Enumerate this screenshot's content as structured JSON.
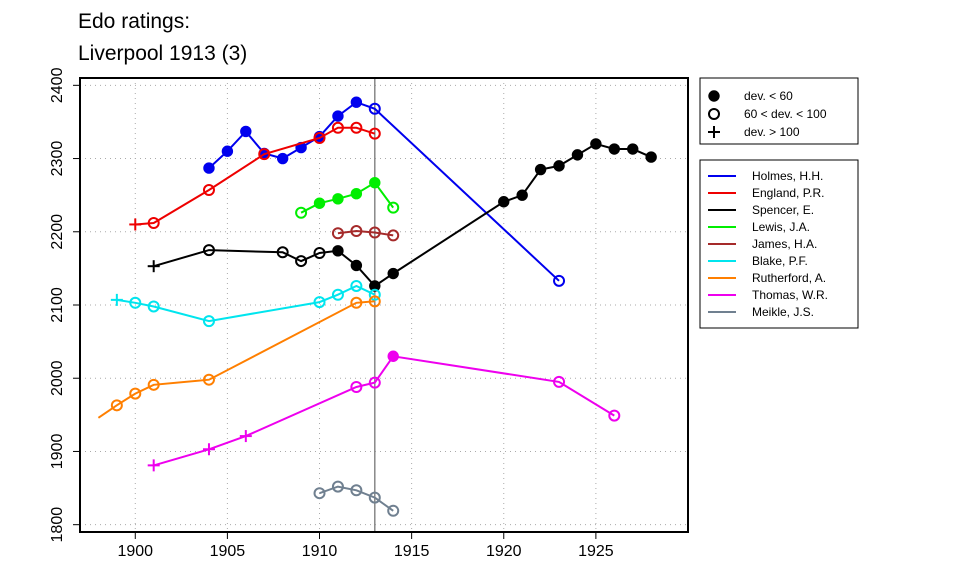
{
  "chart_data": {
    "type": "line",
    "title_lines": [
      "Edo ratings:",
      "Liverpool 1913 (3)"
    ],
    "xlim": [
      1897,
      1930
    ],
    "ylim": [
      1790,
      2410
    ],
    "x_ticks": [
      1900,
      1905,
      1910,
      1915,
      1920,
      1925
    ],
    "y_ticks": [
      1800,
      1900,
      2000,
      2100,
      2200,
      2300,
      2400
    ],
    "grid": true,
    "reference_line_x": 1913,
    "marker_legend": [
      {
        "marker": "dot",
        "label": "dev. < 60"
      },
      {
        "marker": "circle",
        "label": "60 < dev. < 100"
      },
      {
        "marker": "plus",
        "label": "dev. > 100"
      }
    ],
    "series": [
      {
        "name": "Holmes, H.H.",
        "color": "#0000ee",
        "points": [
          {
            "x": 1904,
            "y": 2287,
            "m": "dot"
          },
          {
            "x": 1905,
            "y": 2310,
            "m": "dot"
          },
          {
            "x": 1906,
            "y": 2337,
            "m": "dot"
          },
          {
            "x": 1907,
            "y": 2307,
            "m": "dot"
          },
          {
            "x": 1908,
            "y": 2300,
            "m": "dot"
          },
          {
            "x": 1909,
            "y": 2315,
            "m": "dot"
          },
          {
            "x": 1910,
            "y": 2330,
            "m": "dot"
          },
          {
            "x": 1911,
            "y": 2358,
            "m": "dot"
          },
          {
            "x": 1912,
            "y": 2377,
            "m": "dot"
          },
          {
            "x": 1913,
            "y": 2368,
            "m": "circle"
          },
          {
            "x": 1923,
            "y": 2133,
            "m": "circle"
          }
        ]
      },
      {
        "name": "England, P.R.",
        "color": "#ee0000",
        "points": [
          {
            "x": 1900,
            "y": 2210,
            "m": "plus"
          },
          {
            "x": 1901,
            "y": 2212,
            "m": "circle"
          },
          {
            "x": 1904,
            "y": 2257,
            "m": "circle"
          },
          {
            "x": 1907,
            "y": 2306,
            "m": "circle"
          },
          {
            "x": 1910,
            "y": 2328,
            "m": "circle"
          },
          {
            "x": 1911,
            "y": 2342,
            "m": "circle"
          },
          {
            "x": 1912,
            "y": 2342,
            "m": "circle"
          },
          {
            "x": 1913,
            "y": 2334,
            "m": "circle"
          }
        ]
      },
      {
        "name": "Spencer, E.",
        "color": "#000000",
        "points": [
          {
            "x": 1901,
            "y": 2153,
            "m": "plus"
          },
          {
            "x": 1904,
            "y": 2175,
            "m": "circle"
          },
          {
            "x": 1908,
            "y": 2172,
            "m": "circle"
          },
          {
            "x": 1909,
            "y": 2160,
            "m": "circle"
          },
          {
            "x": 1910,
            "y": 2171,
            "m": "circle"
          },
          {
            "x": 1911,
            "y": 2174,
            "m": "dot"
          },
          {
            "x": 1912,
            "y": 2154,
            "m": "dot"
          },
          {
            "x": 1913,
            "y": 2126,
            "m": "dot"
          },
          {
            "x": 1914,
            "y": 2143,
            "m": "dot"
          },
          {
            "x": 1920,
            "y": 2241,
            "m": "dot"
          },
          {
            "x": 1921,
            "y": 2250,
            "m": "dot"
          },
          {
            "x": 1922,
            "y": 2285,
            "m": "dot"
          },
          {
            "x": 1923,
            "y": 2290,
            "m": "dot"
          },
          {
            "x": 1924,
            "y": 2305,
            "m": "dot"
          },
          {
            "x": 1925,
            "y": 2320,
            "m": "dot"
          },
          {
            "x": 1926,
            "y": 2313,
            "m": "dot"
          },
          {
            "x": 1927,
            "y": 2313,
            "m": "dot"
          },
          {
            "x": 1928,
            "y": 2302,
            "m": "dot"
          }
        ]
      },
      {
        "name": "Lewis, J.A.",
        "color": "#00ee00",
        "points": [
          {
            "x": 1909,
            "y": 2226,
            "m": "circle"
          },
          {
            "x": 1910,
            "y": 2239,
            "m": "dot"
          },
          {
            "x": 1911,
            "y": 2245,
            "m": "dot"
          },
          {
            "x": 1912,
            "y": 2252,
            "m": "dot"
          },
          {
            "x": 1913,
            "y": 2267,
            "m": "dot"
          },
          {
            "x": 1914,
            "y": 2233,
            "m": "circle"
          }
        ]
      },
      {
        "name": "James, H.A.",
        "color": "#a52a2a",
        "points": [
          {
            "x": 1911,
            "y": 2198,
            "m": "circle"
          },
          {
            "x": 1912,
            "y": 2201,
            "m": "circle"
          },
          {
            "x": 1913,
            "y": 2199,
            "m": "circle"
          },
          {
            "x": 1914,
            "y": 2195,
            "m": "circle"
          }
        ]
      },
      {
        "name": "Blake, P.F.",
        "color": "#00e5ee",
        "points": [
          {
            "x": 1899,
            "y": 2107,
            "m": "plus"
          },
          {
            "x": 1900,
            "y": 2103,
            "m": "circle"
          },
          {
            "x": 1901,
            "y": 2098,
            "m": "circle"
          },
          {
            "x": 1904,
            "y": 2078,
            "m": "circle"
          },
          {
            "x": 1910,
            "y": 2104,
            "m": "circle"
          },
          {
            "x": 1911,
            "y": 2114,
            "m": "circle"
          },
          {
            "x": 1912,
            "y": 2126,
            "m": "circle"
          },
          {
            "x": 1913,
            "y": 2114,
            "m": "circle"
          }
        ]
      },
      {
        "name": "Rutherford, A.",
        "color": "#ff7f00",
        "points": [
          {
            "x": 1898,
            "y": 1946,
            "m": "none"
          },
          {
            "x": 1899,
            "y": 1963,
            "m": "circle"
          },
          {
            "x": 1900,
            "y": 1979,
            "m": "circle"
          },
          {
            "x": 1901,
            "y": 1991,
            "m": "circle"
          },
          {
            "x": 1904,
            "y": 1998,
            "m": "circle"
          },
          {
            "x": 1912,
            "y": 2103,
            "m": "circle"
          },
          {
            "x": 1913,
            "y": 2105,
            "m": "circle"
          }
        ]
      },
      {
        "name": "Thomas, W.R.",
        "color": "#ee00ee",
        "points": [
          {
            "x": 1901,
            "y": 1881,
            "m": "plus"
          },
          {
            "x": 1904,
            "y": 1903,
            "m": "plus"
          },
          {
            "x": 1906,
            "y": 1921,
            "m": "plus"
          },
          {
            "x": 1912,
            "y": 1988,
            "m": "circle"
          },
          {
            "x": 1913,
            "y": 1994,
            "m": "circle"
          },
          {
            "x": 1914,
            "y": 2030,
            "m": "dot"
          },
          {
            "x": 1923,
            "y": 1995,
            "m": "circle"
          },
          {
            "x": 1926,
            "y": 1949,
            "m": "circle"
          }
        ]
      },
      {
        "name": "Meikle, J.S.",
        "color": "#708090",
        "points": [
          {
            "x": 1910,
            "y": 1843,
            "m": "circle"
          },
          {
            "x": 1911,
            "y": 1852,
            "m": "circle"
          },
          {
            "x": 1912,
            "y": 1847,
            "m": "circle"
          },
          {
            "x": 1913,
            "y": 1837,
            "m": "circle"
          },
          {
            "x": 1914,
            "y": 1819,
            "m": "circle"
          }
        ]
      }
    ]
  }
}
